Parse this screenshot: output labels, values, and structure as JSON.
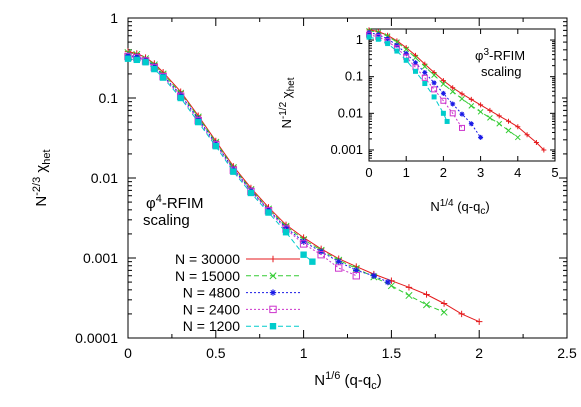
{
  "chart_data": [
    {
      "type": "scatter",
      "xscale": "linear",
      "yscale": "log",
      "xlim": [
        0,
        2.5
      ],
      "ylim": [
        0.0001,
        1
      ],
      "xticks": [
        "0",
        "0.5",
        "1",
        "1.5",
        "2",
        "2.5"
      ],
      "yticks": [
        "0.0001",
        "0.001",
        "0.01",
        "0.1",
        "1"
      ],
      "ylabel": {
        "base": "N",
        "exp": "-2/3",
        "main": "χ",
        "sub": "het"
      },
      "xlabel": {
        "base": "N",
        "exp": "1/6",
        "rest": " (q-q",
        "sub": "c",
        "end": ")"
      },
      "annotation": {
        "phi": "φ",
        "exp": "4",
        "rest": "-RFIM",
        "line2": "scaling"
      },
      "legend_position": "bottom-left",
      "series": [
        {
          "name": "N = 30000",
          "color": "#e41a1c",
          "marker": "plus",
          "line": "solid",
          "x": [
            0,
            0.05,
            0.1,
            0.15,
            0.2,
            0.3,
            0.4,
            0.5,
            0.6,
            0.7,
            0.8,
            0.9,
            1.0,
            1.1,
            1.2,
            1.3,
            1.4,
            1.5,
            1.6,
            1.7,
            1.8,
            1.9,
            2.0
          ],
          "y": [
            0.38,
            0.36,
            0.32,
            0.27,
            0.21,
            0.12,
            0.06,
            0.029,
            0.014,
            0.0075,
            0.0043,
            0.0026,
            0.0018,
            0.0013,
            0.00098,
            0.00078,
            0.00063,
            0.00052,
            0.00043,
            0.00035,
            0.00027,
            0.0002,
            0.00016
          ]
        },
        {
          "name": "N = 15000",
          "color": "#33cc33",
          "marker": "cross",
          "line": "dashed",
          "x": [
            0,
            0.05,
            0.1,
            0.15,
            0.2,
            0.3,
            0.4,
            0.5,
            0.6,
            0.7,
            0.8,
            0.9,
            1.0,
            1.1,
            1.2,
            1.3,
            1.4,
            1.5,
            1.6,
            1.7,
            1.8
          ],
          "y": [
            0.37,
            0.35,
            0.31,
            0.26,
            0.2,
            0.115,
            0.058,
            0.028,
            0.0135,
            0.0072,
            0.0041,
            0.0025,
            0.0017,
            0.00125,
            0.00094,
            0.00074,
            0.00058,
            0.00045,
            0.00034,
            0.00026,
            0.00021
          ]
        },
        {
          "name": "N = 4800",
          "color": "#1a1ae6",
          "marker": "star",
          "line": "dotted",
          "x": [
            0,
            0.05,
            0.1,
            0.15,
            0.2,
            0.3,
            0.4,
            0.5,
            0.6,
            0.7,
            0.8,
            0.9,
            1.0,
            1.1,
            1.2,
            1.3,
            1.4,
            1.48
          ],
          "y": [
            0.34,
            0.33,
            0.3,
            0.25,
            0.19,
            0.11,
            0.055,
            0.027,
            0.013,
            0.007,
            0.004,
            0.0024,
            0.0016,
            0.0012,
            0.0009,
            0.0007,
            0.0006,
            0.0005
          ]
        },
        {
          "name": "N = 2400",
          "color": "#cc33cc",
          "marker": "square",
          "line": "dotted",
          "x": [
            0,
            0.05,
            0.1,
            0.15,
            0.2,
            0.3,
            0.4,
            0.5,
            0.6,
            0.7,
            0.8,
            0.9,
            1.0,
            1.1,
            1.2,
            1.3
          ],
          "y": [
            0.33,
            0.32,
            0.29,
            0.24,
            0.185,
            0.105,
            0.052,
            0.026,
            0.0125,
            0.0068,
            0.0039,
            0.0023,
            0.0015,
            0.0011,
            0.00075,
            0.0006
          ]
        },
        {
          "name": "N = 1200",
          "color": "#00cccc",
          "marker": "filled-square",
          "line": "dashed",
          "x": [
            0,
            0.05,
            0.1,
            0.15,
            0.2,
            0.3,
            0.4,
            0.5,
            0.6,
            0.7,
            0.8,
            0.9,
            1.0,
            1.05
          ],
          "y": [
            0.31,
            0.3,
            0.28,
            0.23,
            0.18,
            0.1,
            0.05,
            0.025,
            0.012,
            0.0065,
            0.0037,
            0.0021,
            0.0011,
            0.0009
          ]
        }
      ]
    },
    {
      "type": "scatter",
      "inset": true,
      "xscale": "linear",
      "yscale": "log",
      "xlim": [
        0,
        5
      ],
      "ylim": [
        0.0005,
        2
      ],
      "xticks": [
        "0",
        "1",
        "2",
        "3",
        "4",
        "5"
      ],
      "yticks": [
        "0.001",
        "0.01",
        "0.1",
        "1"
      ],
      "ylabel": {
        "base": "N",
        "exp": "-1/2",
        "main": "χ",
        "sub": "het"
      },
      "xlabel": {
        "base": "N",
        "exp": "1/4",
        "rest": " (q-q",
        "sub": "c",
        "end": ")"
      },
      "annotation": {
        "phi": "φ",
        "exp": "3",
        "rest": "-RFIM",
        "line2": "scaling"
      },
      "series": [
        {
          "name": "N = 30000",
          "color": "#e41a1c",
          "marker": "plus",
          "line": "solid",
          "x": [
            0,
            0.25,
            0.5,
            0.75,
            1.0,
            1.25,
            1.5,
            1.75,
            2.0,
            2.25,
            2.5,
            2.75,
            3.0,
            3.25,
            3.5,
            3.75,
            4.0,
            4.25,
            4.5,
            4.7
          ],
          "y": [
            1.9,
            1.7,
            1.35,
            0.95,
            0.62,
            0.38,
            0.22,
            0.13,
            0.078,
            0.05,
            0.034,
            0.024,
            0.017,
            0.012,
            0.0085,
            0.0061,
            0.0043,
            0.0026,
            0.0016,
            0.001
          ]
        },
        {
          "name": "N = 15000",
          "color": "#33cc33",
          "marker": "cross",
          "line": "dashed",
          "x": [
            0,
            0.25,
            0.5,
            0.75,
            1.0,
            1.25,
            1.5,
            1.75,
            2.0,
            2.25,
            2.5,
            2.75,
            3.0,
            3.25,
            3.5,
            3.75,
            4.0
          ],
          "y": [
            1.8,
            1.62,
            1.28,
            0.88,
            0.56,
            0.33,
            0.19,
            0.11,
            0.063,
            0.039,
            0.025,
            0.016,
            0.011,
            0.0075,
            0.0052,
            0.0034,
            0.0022
          ]
        },
        {
          "name": "N = 4800",
          "color": "#1a1ae6",
          "marker": "star",
          "line": "dotted",
          "x": [
            0,
            0.25,
            0.5,
            0.75,
            1.0,
            1.25,
            1.5,
            1.75,
            2.0,
            2.25,
            2.5,
            2.75,
            3.0
          ],
          "y": [
            1.6,
            1.4,
            1.08,
            0.72,
            0.43,
            0.24,
            0.13,
            0.068,
            0.035,
            0.018,
            0.0095,
            0.0052,
            0.0022
          ]
        },
        {
          "name": "N = 2400",
          "color": "#cc33cc",
          "marker": "square",
          "line": "dotted",
          "x": [
            0,
            0.25,
            0.5,
            0.75,
            1.0,
            1.25,
            1.5,
            1.75,
            2.0,
            2.25,
            2.5
          ],
          "y": [
            1.4,
            1.22,
            0.93,
            0.6,
            0.35,
            0.18,
            0.093,
            0.045,
            0.022,
            0.01,
            0.004
          ]
        },
        {
          "name": "N = 1200",
          "color": "#00cccc",
          "marker": "filled-square",
          "line": "dashed",
          "x": [
            0,
            0.25,
            0.5,
            0.75,
            1.0,
            1.25,
            1.5,
            1.75,
            2.0,
            2.1
          ],
          "y": [
            1.2,
            1.05,
            0.8,
            0.5,
            0.28,
            0.14,
            0.065,
            0.028,
            0.01,
            0.006
          ]
        }
      ]
    }
  ]
}
